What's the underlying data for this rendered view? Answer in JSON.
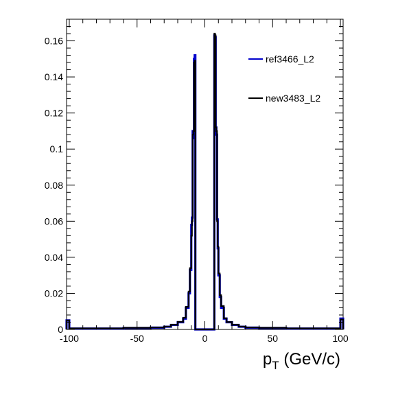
{
  "chart_data": {
    "type": "histogram-step",
    "title": "",
    "xlabel": {
      "base": "p",
      "subscript": "T",
      "suffix": " (GeV/c)"
    },
    "ylabel": "",
    "xlim": [
      -102,
      102
    ],
    "ylim": [
      0,
      0.172
    ],
    "x_ticks": [
      -100,
      -50,
      0,
      50,
      100
    ],
    "x_tick_labels": [
      "-100",
      "-50",
      "0",
      "50",
      "100"
    ],
    "y_ticks": [
      0,
      0.02,
      0.04,
      0.06,
      0.08,
      0.1,
      0.12,
      0.14,
      0.16
    ],
    "y_tick_labels": [
      "0",
      "0.02",
      "0.04",
      "0.06",
      "0.08",
      "0.1",
      "0.12",
      "0.14",
      "0.16"
    ],
    "grid": false,
    "legend_position": "top-right",
    "colors": {
      "ref": "#0000cc",
      "new": "#000000"
    },
    "series": [
      {
        "name": "ref3466_L2",
        "color": "#0000cc",
        "edges": [
          -102,
          -100,
          -60,
          -40,
          -30,
          -25,
          -20,
          -16,
          -14,
          -12,
          -11,
          -10,
          -9.5,
          -9,
          -8.5,
          -8,
          -7.5,
          -7,
          -6.5,
          -6,
          6,
          6.5,
          7,
          7.5,
          8,
          8.5,
          9,
          9.5,
          10,
          11,
          12,
          14,
          16,
          20,
          25,
          30,
          40,
          60,
          100,
          102
        ],
        "values": [
          0.005,
          0.0005,
          0.0008,
          0.001,
          0.0015,
          0.0025,
          0.004,
          0.006,
          0.012,
          0.02,
          0.033,
          0.058,
          0.062,
          0.11,
          0.106,
          0.15,
          0.152,
          0.0,
          0.0,
          0.0,
          0.0,
          0.0,
          0.163,
          0.162,
          0.112,
          0.108,
          0.061,
          0.045,
          0.03,
          0.018,
          0.012,
          0.006,
          0.004,
          0.0025,
          0.0015,
          0.001,
          0.0008,
          0.0005,
          0.006
        ]
      },
      {
        "name": "new3483_L2",
        "color": "#000000",
        "edges": [
          -102,
          -100,
          -60,
          -40,
          -30,
          -25,
          -20,
          -16,
          -14,
          -12,
          -11,
          -10,
          -9.5,
          -9,
          -8.5,
          -8,
          -7.5,
          -7,
          -6.5,
          -6,
          6,
          6.5,
          7,
          7.5,
          8,
          8.5,
          9,
          9.5,
          10,
          11,
          12,
          14,
          16,
          20,
          25,
          30,
          40,
          60,
          100,
          102
        ],
        "values": [
          0.005,
          0.0006,
          0.0009,
          0.0011,
          0.0016,
          0.0026,
          0.0042,
          0.0065,
          0.0125,
          0.021,
          0.034,
          0.052,
          0.06,
          0.108,
          0.11,
          0.148,
          0.149,
          0.0,
          0.0,
          0.0,
          0.0,
          0.0,
          0.164,
          0.163,
          0.112,
          0.11,
          0.06,
          0.046,
          0.031,
          0.019,
          0.013,
          0.0062,
          0.0041,
          0.0026,
          0.0016,
          0.0011,
          0.0009,
          0.0006,
          0.0055
        ]
      }
    ]
  }
}
